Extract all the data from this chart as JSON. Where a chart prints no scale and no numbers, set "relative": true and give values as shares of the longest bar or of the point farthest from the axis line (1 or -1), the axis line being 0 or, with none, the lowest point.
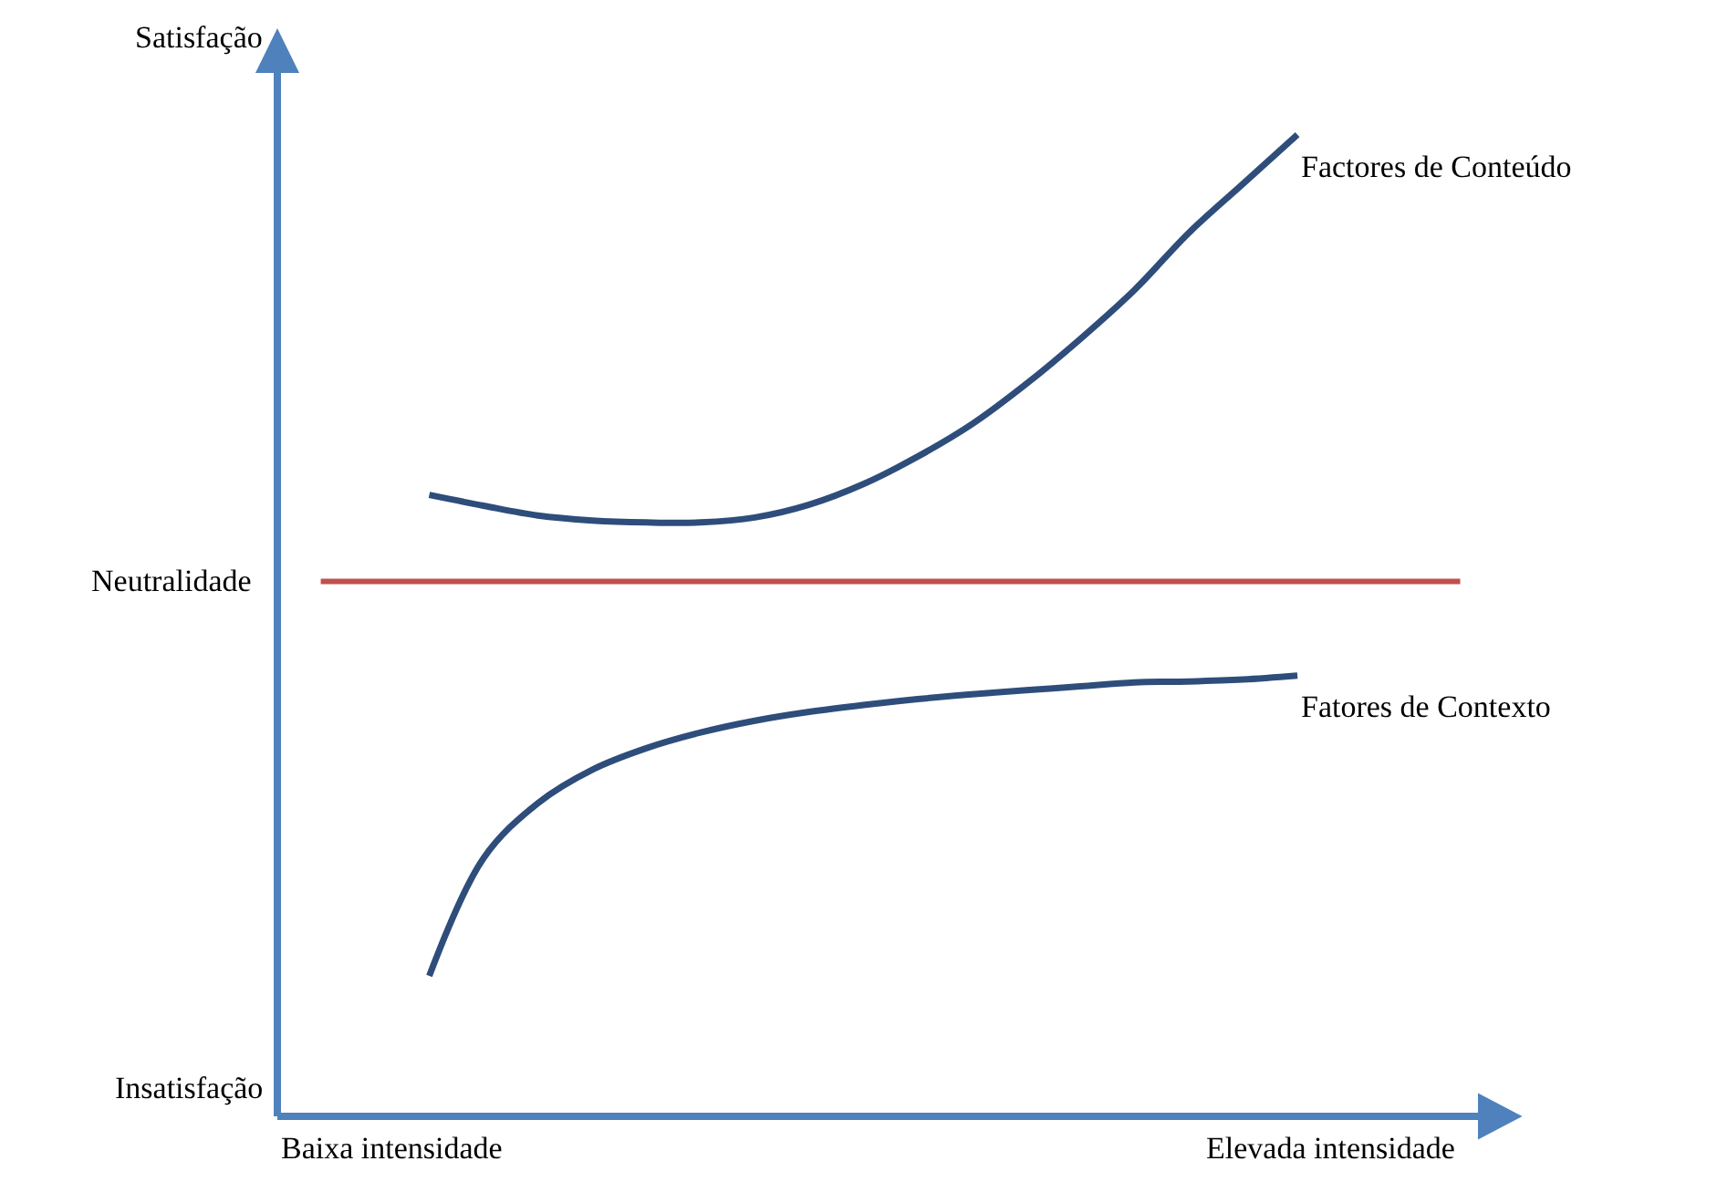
{
  "chart_data": {
    "type": "line",
    "relative": true,
    "categories": [
      null,
      null,
      null,
      null,
      null,
      null,
      null,
      null,
      null,
      null,
      null,
      null,
      null,
      null,
      null,
      null,
      null,
      null,
      null,
      null,
      null,
      null
    ],
    "series": [
      {
        "name": "Factores de Conteúdo",
        "color": "#2e4d7b",
        "values": [
          null,
          null,
          0.633,
          0.622,
          0.612,
          0.607,
          0.605,
          0.605,
          0.61,
          0.623,
          0.644,
          0.672,
          0.705,
          0.746,
          0.792,
          0.842,
          0.9,
          0.95,
          1.0,
          null,
          null,
          null
        ]
      },
      {
        "name": "Fatores de Contexto",
        "color": "#2e4d7b",
        "values": [
          null,
          null,
          0.143,
          0.263,
          0.319,
          0.353,
          0.375,
          0.391,
          0.403,
          0.412,
          0.419,
          0.425,
          0.43,
          0.434,
          0.438,
          0.442,
          0.443,
          0.445,
          0.449,
          null,
          null,
          null
        ]
      }
    ],
    "ref_lines": [
      {
        "axis": "y",
        "value": 0.545,
        "label": "Neutralidade",
        "color": "#c0504d"
      }
    ],
    "annotations": [
      "Satisfação",
      "Insatisfação",
      "Baixa intensidade",
      "Elevada intensidade"
    ],
    "legend": false,
    "marker": "none",
    "line_style": "solid"
  }
}
